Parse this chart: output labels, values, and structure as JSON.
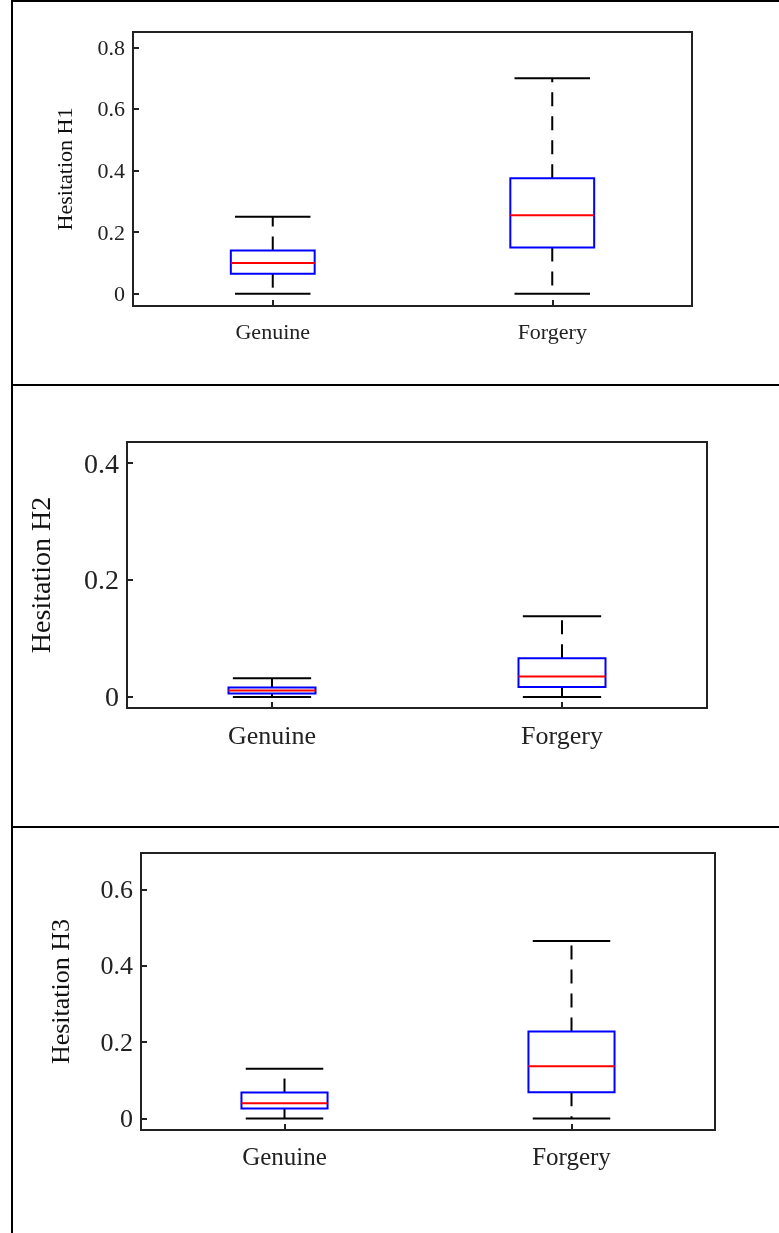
{
  "chart_data": [
    {
      "type": "box",
      "ylabel": "Hesitation H1",
      "categories": [
        "Genuine",
        "Forgery"
      ],
      "ylim": [
        -0.04,
        0.85
      ],
      "yticks": [
        0,
        0.2,
        0.4,
        0.6,
        0.8
      ],
      "line_style": "dashed",
      "series": [
        {
          "color": "#0000ff",
          "boxes": [
            {
              "low": 0,
              "q1": 0.065,
              "median": 0.1,
              "q3": 0.14,
              "high": 0.25
            },
            {
              "low": 0,
              "q1": 0.15,
              "median": 0.255,
              "q3": 0.375,
              "high": 0.7
            }
          ]
        }
      ]
    },
    {
      "type": "box",
      "ylabel": "Hesitation H2",
      "categories": [
        "Genuine",
        "Forgery"
      ],
      "ylim": [
        -0.019,
        0.436
      ],
      "yticks": [
        0,
        0.2,
        0.4
      ],
      "line_style": "dashed",
      "series": [
        {
          "color": "#0000ff",
          "boxes": [
            {
              "low": 0,
              "q1": 0.006,
              "median": 0.011,
              "q3": 0.016,
              "high": 0.032
            },
            {
              "low": 0,
              "q1": 0.017,
              "median": 0.035,
              "q3": 0.066,
              "high": 0.138
            }
          ]
        }
      ]
    },
    {
      "type": "box",
      "ylabel": "Hesitation H3",
      "categories": [
        "Genuine",
        "Forgery"
      ],
      "ylim": [
        -0.03,
        0.695
      ],
      "yticks": [
        0,
        0.2,
        0.4,
        0.6
      ],
      "line_style": "dashed",
      "series": [
        {
          "color": "#0000ff",
          "boxes": [
            {
              "low": 0,
              "q1": 0.026,
              "median": 0.04,
              "q3": 0.068,
              "high": 0.13
            },
            {
              "low": 0,
              "q1": 0.069,
              "median": 0.137,
              "q3": 0.228,
              "high": 0.465
            }
          ]
        }
      ]
    }
  ]
}
